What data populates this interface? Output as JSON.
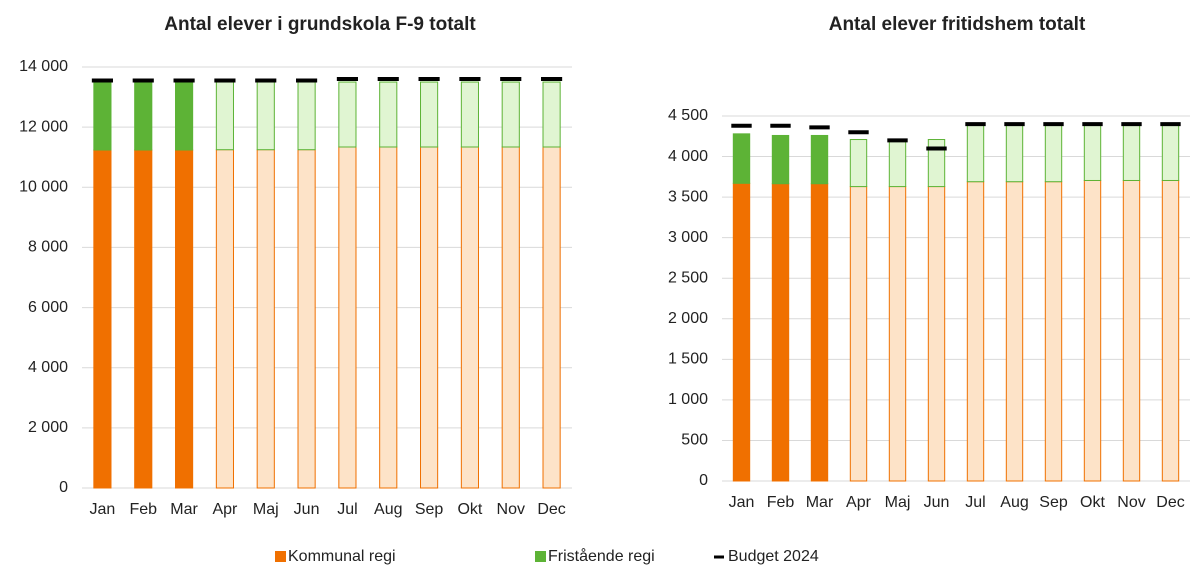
{
  "chart_data": [
    {
      "type": "bar",
      "stacked": true,
      "title": "Antal elever i grundskola F-9  totalt",
      "categories": [
        "Jan",
        "Feb",
        "Mar",
        "Apr",
        "Maj",
        "Jun",
        "Jul",
        "Aug",
        "Sep",
        "Okt",
        "Nov",
        "Dec"
      ],
      "ylim": [
        0,
        14000
      ],
      "yticks": [
        0,
        {
          "value": 2000,
          "label": "2 000"
        },
        {
          "value": 4000,
          "label": "4 000"
        },
        {
          "value": 6000,
          "label": "6 000"
        },
        {
          "value": 8000,
          "label": "8 000"
        },
        {
          "value": 10000,
          "label": "10 000"
        },
        {
          "value": 12000,
          "label": "12 000"
        },
        {
          "value": 14000,
          "label": "14 000"
        }
      ],
      "grid": true,
      "series": [
        {
          "name": "Kommunal regi",
          "color": "#f07000",
          "values": [
            11240,
            11240,
            11240,
            11250,
            11250,
            11250,
            11340,
            11340,
            11340,
            11340,
            11340,
            11340
          ],
          "colors": [
            "#f07000",
            "#f07000",
            "#f07000",
            "#fde3c8",
            "#fde3c8",
            "#fde3c8",
            "#fde3c8",
            "#fde3c8",
            "#fde3c8",
            "#fde3c8",
            "#fde3c8",
            "#fde3c8"
          ]
        },
        {
          "name": "Fristående regi",
          "color": "#5db336",
          "values": [
            2260,
            2260,
            2260,
            2250,
            2250,
            2250,
            2160,
            2160,
            2160,
            2160,
            2160,
            2160
          ],
          "colors": [
            "#5db336",
            "#5db336",
            "#5db336",
            "#e0f5d2",
            "#e0f5d2",
            "#e0f5d2",
            "#e0f5d2",
            "#e0f5d2",
            "#e0f5d2",
            "#e0f5d2",
            "#e0f5d2",
            "#e0f5d2"
          ]
        },
        {
          "name": "Budget 2024",
          "type": "marker",
          "color": "#000000",
          "values": [
            13550,
            13550,
            13550,
            13550,
            13550,
            13550,
            13600,
            13600,
            13600,
            13600,
            13600,
            13600
          ]
        }
      ]
    },
    {
      "type": "bar",
      "stacked": true,
      "title": "Antal elever fritidshem totalt",
      "categories": [
        "Jan",
        "Feb",
        "Mar",
        "Apr",
        "Maj",
        "Jun",
        "Jul",
        "Aug",
        "Sep",
        "Okt",
        "Nov",
        "Dec"
      ],
      "ylim": [
        0,
        4500
      ],
      "yticks": [
        0,
        500,
        {
          "value": 1000,
          "label": "1 000"
        },
        {
          "value": 1500,
          "label": "1 500"
        },
        {
          "value": 2000,
          "label": "2 000"
        },
        {
          "value": 2500,
          "label": "2 500"
        },
        {
          "value": 3000,
          "label": "3 000"
        },
        {
          "value": 3500,
          "label": "3 500"
        },
        {
          "value": 4000,
          "label": "4 000"
        },
        {
          "value": 4500,
          "label": "4 500"
        }
      ],
      "grid": true,
      "series": [
        {
          "name": "Kommunal regi",
          "color": "#f07000",
          "values": [
            3670,
            3665,
            3665,
            3630,
            3630,
            3630,
            3690,
            3690,
            3690,
            3705,
            3705,
            3705
          ],
          "colors": [
            "#f07000",
            "#f07000",
            "#f07000",
            "#fde3c8",
            "#fde3c8",
            "#fde3c8",
            "#fde3c8",
            "#fde3c8",
            "#fde3c8",
            "#fde3c8",
            "#fde3c8",
            "#fde3c8"
          ]
        },
        {
          "name": "Fristående regi",
          "color": "#5db336",
          "values": [
            610,
            595,
            595,
            580,
            570,
            580,
            700,
            700,
            700,
            685,
            685,
            685
          ],
          "colors": [
            "#5db336",
            "#5db336",
            "#5db336",
            "#e0f5d2",
            "#e0f5d2",
            "#e0f5d2",
            "#e0f5d2",
            "#e0f5d2",
            "#e0f5d2",
            "#e0f5d2",
            "#e0f5d2",
            "#e0f5d2"
          ]
        },
        {
          "name": "Budget 2024",
          "type": "marker",
          "color": "#000000",
          "values": [
            4380,
            4380,
            4360,
            4300,
            4200,
            4100,
            4400,
            4400,
            4400,
            4400,
            4400,
            4400
          ]
        }
      ]
    }
  ]
}
